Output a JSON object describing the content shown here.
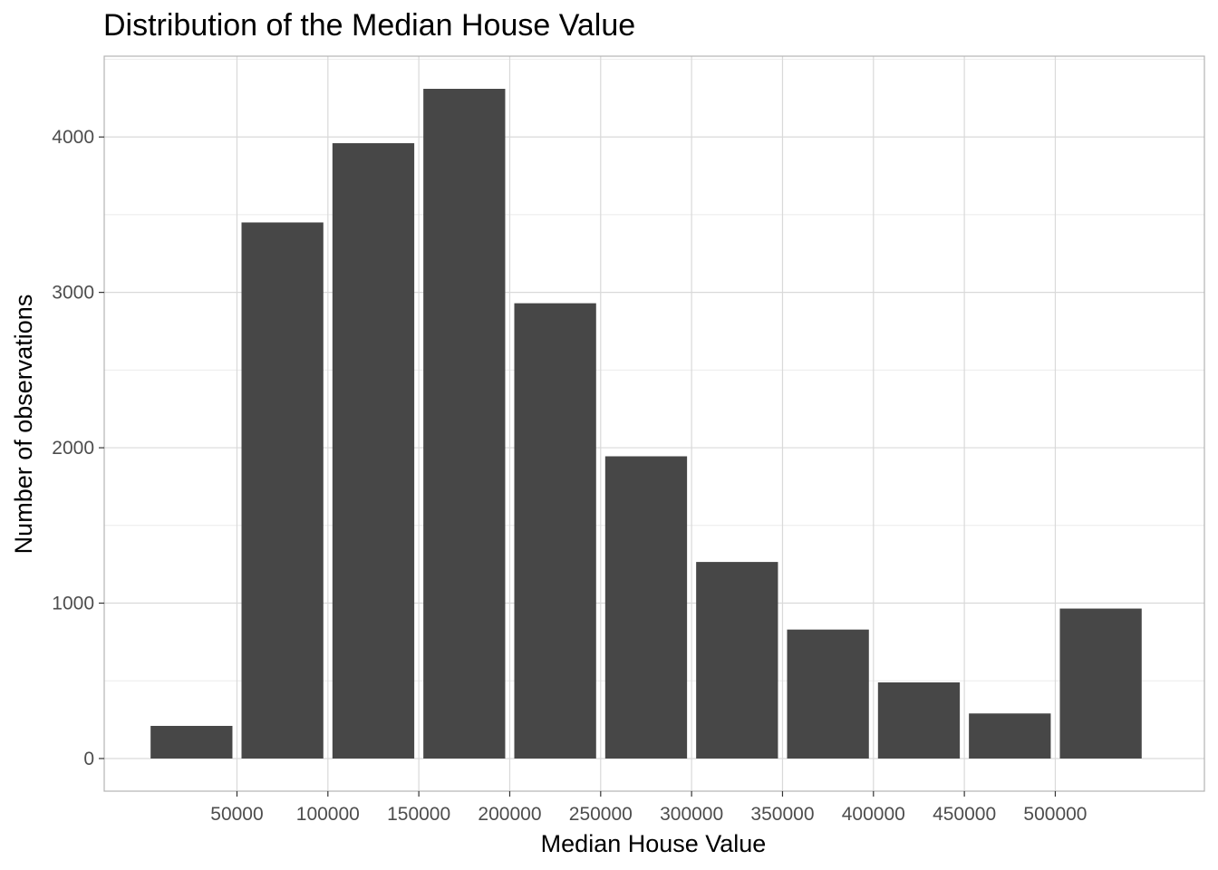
{
  "chart_data": {
    "type": "bar",
    "title": "Distribution of the Median House Value",
    "xlabel": "Median House Value",
    "ylabel": "Number of observations",
    "bins": [
      {
        "from": 0,
        "to": 50000,
        "count": 210
      },
      {
        "from": 50000,
        "to": 100000,
        "count": 3450
      },
      {
        "from": 100000,
        "to": 150000,
        "count": 3960
      },
      {
        "from": 150000,
        "to": 200000,
        "count": 4310
      },
      {
        "from": 200000,
        "to": 250000,
        "count": 2930
      },
      {
        "from": 250000,
        "to": 300000,
        "count": 1945
      },
      {
        "from": 300000,
        "to": 350000,
        "count": 1265
      },
      {
        "from": 350000,
        "to": 400000,
        "count": 830
      },
      {
        "from": 400000,
        "to": 450000,
        "count": 490
      },
      {
        "from": 450000,
        "to": 500000,
        "count": 290
      },
      {
        "from": 500000,
        "to": 550000,
        "count": 965
      }
    ],
    "xticks": [
      50000,
      100000,
      150000,
      200000,
      250000,
      300000,
      350000,
      400000,
      450000,
      500000
    ],
    "yticks": [
      0,
      1000,
      2000,
      3000,
      4000
    ],
    "xlim": [
      -23000,
      582000
    ],
    "ylim": [
      -210,
      4520
    ],
    "grid": true,
    "legend": "none",
    "colors": {
      "bar": "#474747",
      "grid_major": "#d9d9d9",
      "grid_minor": "#ebebeb",
      "panel_border": "#b3b3b3"
    }
  }
}
